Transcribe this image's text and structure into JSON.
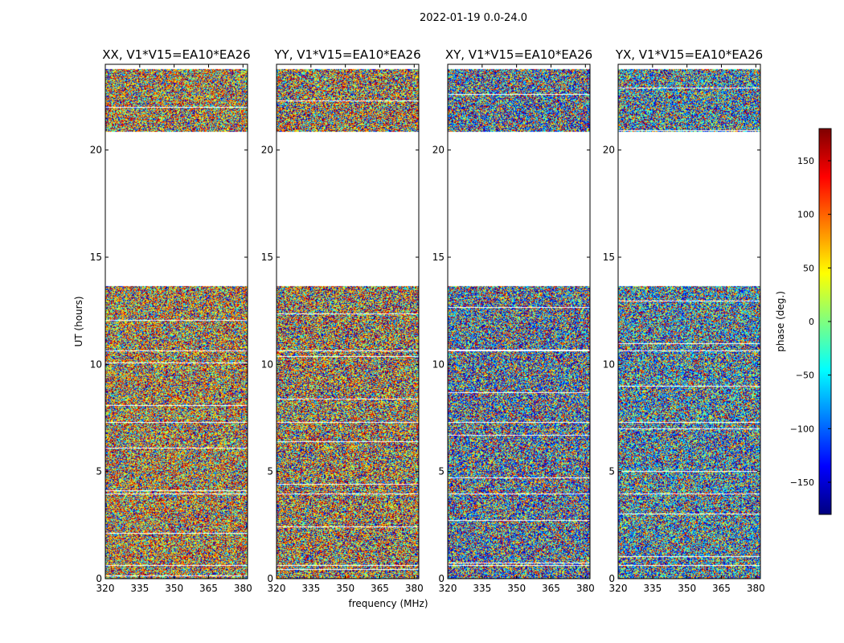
{
  "figure": {
    "suptitle": "2022-01-19 0.0-24.0",
    "xlabel": "frequency (MHz)",
    "ylabel": "UT (hours)"
  },
  "chart_data": [
    {
      "type": "heatmap",
      "title": "XX, V1*V15=EA10*EA26",
      "key": "xx",
      "xlim": [
        320,
        382
      ],
      "ylim": [
        0,
        24
      ],
      "xticks": [
        320,
        335,
        350,
        365,
        380
      ],
      "yticks": [
        0,
        5,
        10,
        15,
        20
      ],
      "empty_ut_ranges": [
        [
          13.65,
          20.85
        ]
      ]
    },
    {
      "type": "heatmap",
      "title": "YY, V1*V15=EA10*EA26",
      "key": "yy",
      "xlim": [
        320,
        382
      ],
      "ylim": [
        0,
        24
      ],
      "xticks": [
        320,
        335,
        350,
        365,
        380
      ],
      "yticks": [
        0,
        5,
        10,
        15,
        20
      ],
      "empty_ut_ranges": [
        [
          13.65,
          20.85
        ]
      ]
    },
    {
      "type": "heatmap",
      "title": "XY, V1*V15=EA10*EA26",
      "key": "xy",
      "xlim": [
        320,
        382
      ],
      "ylim": [
        0,
        24
      ],
      "xticks": [
        320,
        335,
        350,
        365,
        380
      ],
      "yticks": [
        0,
        5,
        10,
        15,
        20
      ],
      "empty_ut_ranges": [
        [
          13.65,
          20.85
        ]
      ]
    },
    {
      "type": "heatmap",
      "title": "YX, V1*V15=EA10*EA26",
      "key": "yx",
      "xlim": [
        320,
        382
      ],
      "ylim": [
        0,
        24
      ],
      "xticks": [
        320,
        335,
        350,
        365,
        380
      ],
      "yticks": [
        0,
        5,
        10,
        15,
        20
      ],
      "empty_ut_ranges": [
        [
          13.65,
          20.85
        ]
      ]
    }
  ],
  "colorbar": {
    "label": "phase (deg.)",
    "range": [
      -180,
      180
    ],
    "ticks": [
      150,
      100,
      50,
      0,
      -50,
      -100,
      -150
    ],
    "tick_labels": [
      "150",
      "100",
      "50",
      "0",
      "−50",
      "−100",
      "−150"
    ],
    "colormap": [
      "#00007f",
      "#0000ff",
      "#007fff",
      "#00ffff",
      "#7fff7f",
      "#ffff00",
      "#ff7f00",
      "#ff0000",
      "#7f0000"
    ]
  }
}
